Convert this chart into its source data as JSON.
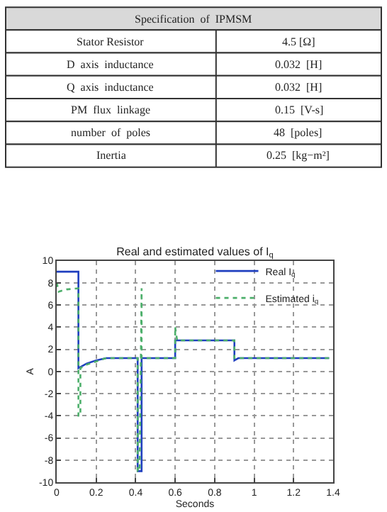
{
  "chart_data": {
    "type": "line",
    "title": "Real and estimated values of I$_{q}$",
    "xlabel": "Seconds",
    "ylabel": "A",
    "annotations": [
      "Specification  of  IPMSM",
      "Stator Resistor",
      "4.5 [Ω]",
      "D  axis  inductance",
      "0.032  [H]",
      "Q  axis  inductance",
      "0.032  [H]",
      "PM  flux  linkage",
      "0.15  [V-s]",
      "number  of  poles",
      "48  [poles]",
      "Inertia",
      "0.25  [kg−m²]"
    ],
    "series": [
      {
        "name": "Real I$_{q}$",
        "color": "#1f3fbf",
        "line_style": "solid",
        "x": [
          0,
          0.11,
          0.11,
          0.12,
          0.15,
          0.2,
          0.25,
          0.41,
          0.41,
          0.43,
          0.43,
          0.6,
          0.6,
          0.9,
          0.9,
          0.92,
          1.38
        ],
        "values": [
          9,
          9,
          0.3,
          0.4,
          0.7,
          1.0,
          1.2,
          1.2,
          -9,
          -9,
          1.2,
          1.2,
          2.8,
          2.8,
          1.0,
          1.2,
          1.2
        ]
      },
      {
        "name": "Estimated i$_{q}$",
        "color": "#4caf6a",
        "line_style": "dotted",
        "x": [
          0,
          0.01,
          0.05,
          0.11,
          0.11,
          0.12,
          0.12,
          0.15,
          0.25,
          0.41,
          0.41,
          0.42,
          0.43,
          0.43,
          0.44,
          0.6,
          0.6,
          0.61,
          0.9,
          0.9,
          1.38
        ],
        "values": [
          8,
          7.2,
          7.4,
          7.5,
          -4,
          -4,
          0.3,
          0.6,
          1.2,
          1.2,
          -9,
          -9,
          7.5,
          1.2,
          1.2,
          1.2,
          4,
          2.8,
          2.8,
          1.2,
          1.2
        ]
      }
    ],
    "xlim": [
      0,
      1.4
    ],
    "xticks": [
      0,
      0.2,
      0.4,
      0.6,
      0.8,
      1,
      1.2,
      1.4
    ],
    "ylim": [
      -10,
      10
    ],
    "yticks": [
      -10,
      -8,
      -6,
      -4,
      -2,
      0,
      2,
      4,
      6,
      8,
      10
    ],
    "grid": true,
    "legend": "right",
    "marker": "none"
  }
}
